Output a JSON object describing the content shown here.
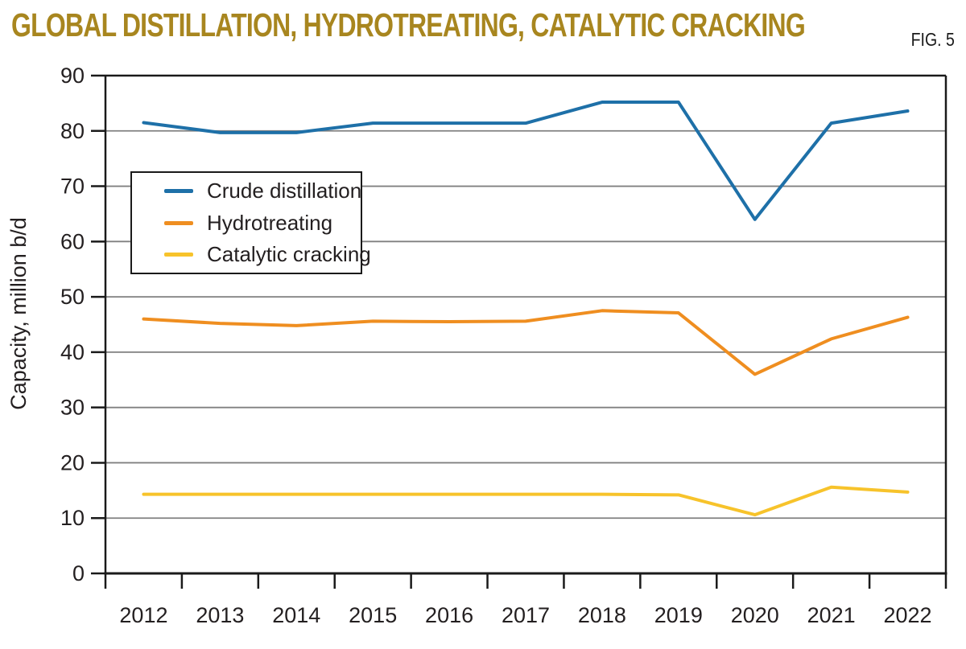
{
  "header": {
    "title": "GLOBAL DISTILLATION, HYDROTREATING, CATALYTIC CRACKING",
    "figure_label": "FIG. 5"
  },
  "chart_data": {
    "type": "line",
    "title": "Global distillation, hydrotreating, catalytic cracking",
    "ylabel": "Capacity, million b/d",
    "xlabel": "",
    "ylim": [
      0,
      90
    ],
    "yticks": [
      0,
      10,
      20,
      30,
      40,
      50,
      60,
      70,
      80,
      90
    ],
    "categories": [
      "2012",
      "2013",
      "2014",
      "2015",
      "2016",
      "2017",
      "2018",
      "2019",
      "2020",
      "2021",
      "2022"
    ],
    "series": [
      {
        "name": "Crude distillation",
        "color": "#1E70A8",
        "values": [
          81.5,
          79.7,
          79.7,
          81.4,
          81.4,
          81.4,
          85.2,
          85.2,
          64.0,
          81.4,
          83.6
        ]
      },
      {
        "name": "Hydrotreating",
        "color": "#EF8E20",
        "values": [
          46.0,
          45.2,
          44.8,
          45.6,
          45.5,
          45.6,
          47.5,
          47.1,
          36.0,
          42.4,
          46.3
        ]
      },
      {
        "name": "Catalytic cracking",
        "color": "#F7C32B",
        "values": [
          14.3,
          14.3,
          14.3,
          14.3,
          14.3,
          14.3,
          14.3,
          14.2,
          10.6,
          15.6,
          14.7
        ]
      }
    ],
    "grid": "horizontal",
    "legend_position": "upper-left-inside"
  },
  "colors": {
    "title": "#A8861F",
    "axis": "#1A1A1A",
    "grid": "#808080",
    "text": "#231F20"
  }
}
